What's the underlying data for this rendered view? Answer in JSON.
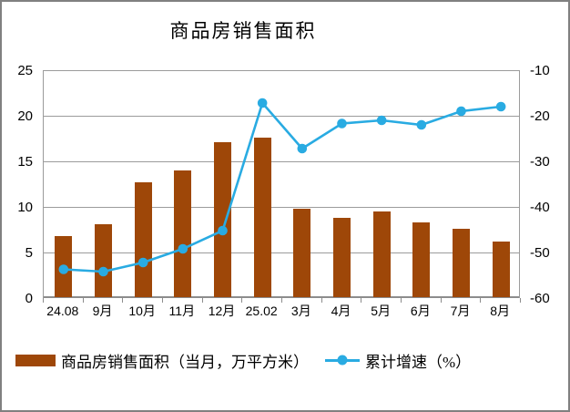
{
  "title": "商品房销售面积",
  "colors": {
    "bar": "#9e4708",
    "line": "#29abe2",
    "grid": "#9b9b9b",
    "text": "#000000",
    "frame_border": "#808080"
  },
  "chart_data": {
    "type": "bar+line combo",
    "title": "商品房销售面积",
    "categories": [
      "24.08",
      "9月",
      "10月",
      "11月",
      "12月",
      "25.02",
      "3月",
      "4月",
      "5月",
      "6月",
      "7月",
      "8月"
    ],
    "series": [
      {
        "name": "商品房销售面积（当月，万平方米）",
        "type": "bar",
        "axis": "left",
        "color": "#9e4708",
        "values": [
          6.7,
          8.0,
          12.6,
          13.9,
          17.0,
          17.5,
          9.7,
          8.7,
          9.4,
          8.2,
          7.5,
          6.1
        ]
      },
      {
        "name": "累计增速（%）",
        "type": "line",
        "axis": "right",
        "color": "#29abe2",
        "values": [
          -53.5,
          -54.0,
          -52.0,
          -49.0,
          -45.0,
          -17.0,
          -27.0,
          -21.5,
          -20.8,
          -21.8,
          -18.8,
          -17.8
        ]
      }
    ],
    "left_axis": {
      "min": 0,
      "max": 25,
      "step": 5,
      "tick_labels": [
        "0",
        "5",
        "10",
        "15",
        "20",
        "25"
      ]
    },
    "right_axis": {
      "min": -60,
      "max": -10,
      "step": 10,
      "tick_labels": [
        "-60",
        "-50",
        "-40",
        "-30",
        "-20",
        "-10"
      ]
    },
    "grid": true,
    "legend_position": "bottom"
  }
}
